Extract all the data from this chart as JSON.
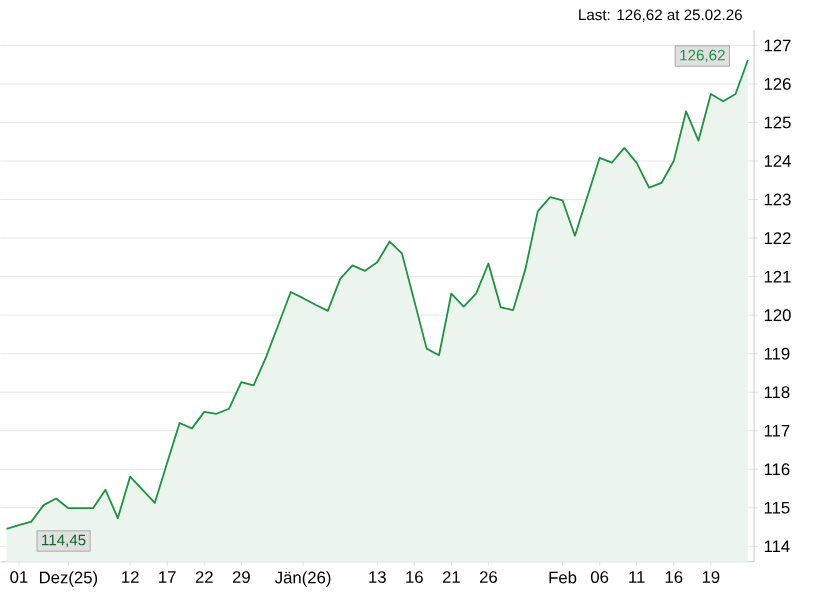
{
  "chart_data": {
    "type": "area",
    "color": "#1f9140",
    "categories": [
      null,
      "01",
      null,
      null,
      null,
      "Dez(25)",
      null,
      null,
      null,
      null,
      "12",
      null,
      null,
      "17",
      null,
      null,
      "22",
      null,
      null,
      "29",
      null,
      null,
      null,
      null,
      "Jän(26)",
      null,
      null,
      null,
      null,
      null,
      "13",
      null,
      null,
      "16",
      null,
      null,
      "21",
      null,
      null,
      "26",
      null,
      null,
      null,
      null,
      null,
      "Feb",
      null,
      null,
      "06",
      null,
      null,
      "11",
      null,
      null,
      "16",
      null,
      null,
      "19",
      null,
      null,
      null
    ],
    "values": [
      114.45,
      114.55,
      114.64,
      115.07,
      115.24,
      114.99,
      114.99,
      114.99,
      115.47,
      114.73,
      115.81,
      115.47,
      115.13,
      116.17,
      117.2,
      117.06,
      117.49,
      117.44,
      117.57,
      118.26,
      118.18,
      118.91,
      119.75,
      120.6,
      120.44,
      120.27,
      120.11,
      120.94,
      121.29,
      121.15,
      121.37,
      121.91,
      121.6,
      120.37,
      119.13,
      118.96,
      120.56,
      120.22,
      120.56,
      121.34,
      120.2,
      120.13,
      121.2,
      122.7,
      123.06,
      122.98,
      122.06,
      123.07,
      124.08,
      123.96,
      124.34,
      123.95,
      123.31,
      123.43,
      124.0,
      125.29,
      124.53,
      125.74,
      125.55,
      125.74,
      126.62
    ],
    "ylim": [
      113.6,
      127.4
    ],
    "yticks": [
      114,
      115,
      116,
      117,
      118,
      119,
      120,
      121,
      122,
      123,
      124,
      125,
      126,
      127
    ],
    "grid": "y",
    "annotations": [
      "Last: 126,62 at 25.02.26",
      "126,62",
      "114,45"
    ]
  }
}
